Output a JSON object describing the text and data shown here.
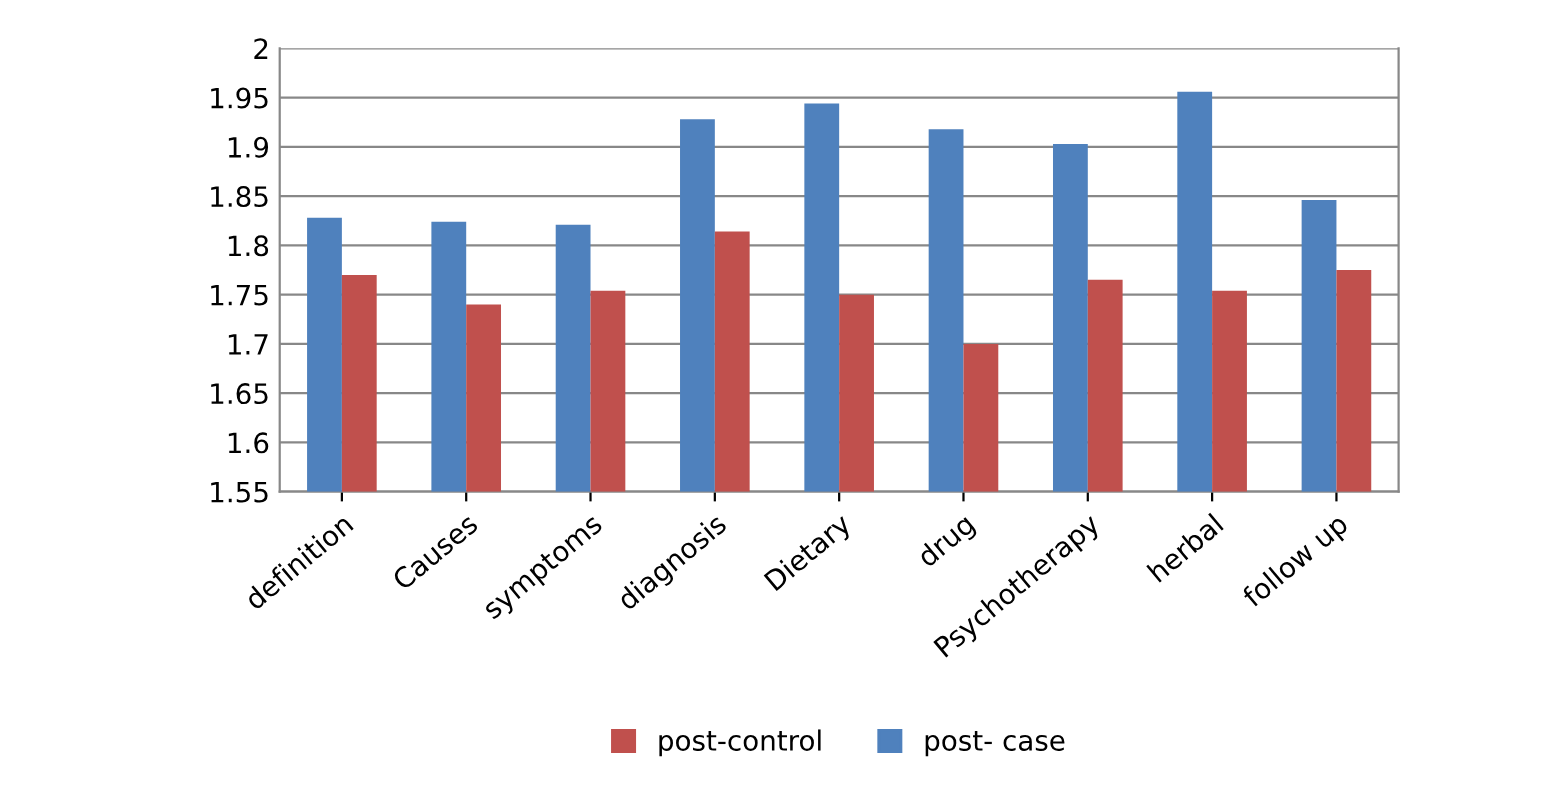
{
  "chart_data": {
    "type": "bar",
    "categories": [
      "definition",
      "Causes",
      "symptoms",
      "diagnosis",
      "Dietary",
      "drug",
      "Psychotherapy",
      "herbal",
      "follow up"
    ],
    "series": [
      {
        "name": "post- case",
        "color": "#4f81bd",
        "values": [
          1.828,
          1.824,
          1.821,
          1.928,
          1.944,
          1.918,
          1.903,
          1.956,
          1.846
        ]
      },
      {
        "name": "post-control",
        "color": "#c0504d",
        "values": [
          1.77,
          1.74,
          1.754,
          1.814,
          1.75,
          1.7,
          1.765,
          1.754,
          1.775
        ]
      }
    ],
    "ylim": [
      1.55,
      2
    ],
    "yticks": [
      1.55,
      1.6,
      1.65,
      1.7,
      1.75,
      1.8,
      1.85,
      1.9,
      1.95,
      2
    ],
    "grid": "y",
    "legend": "bottom"
  }
}
